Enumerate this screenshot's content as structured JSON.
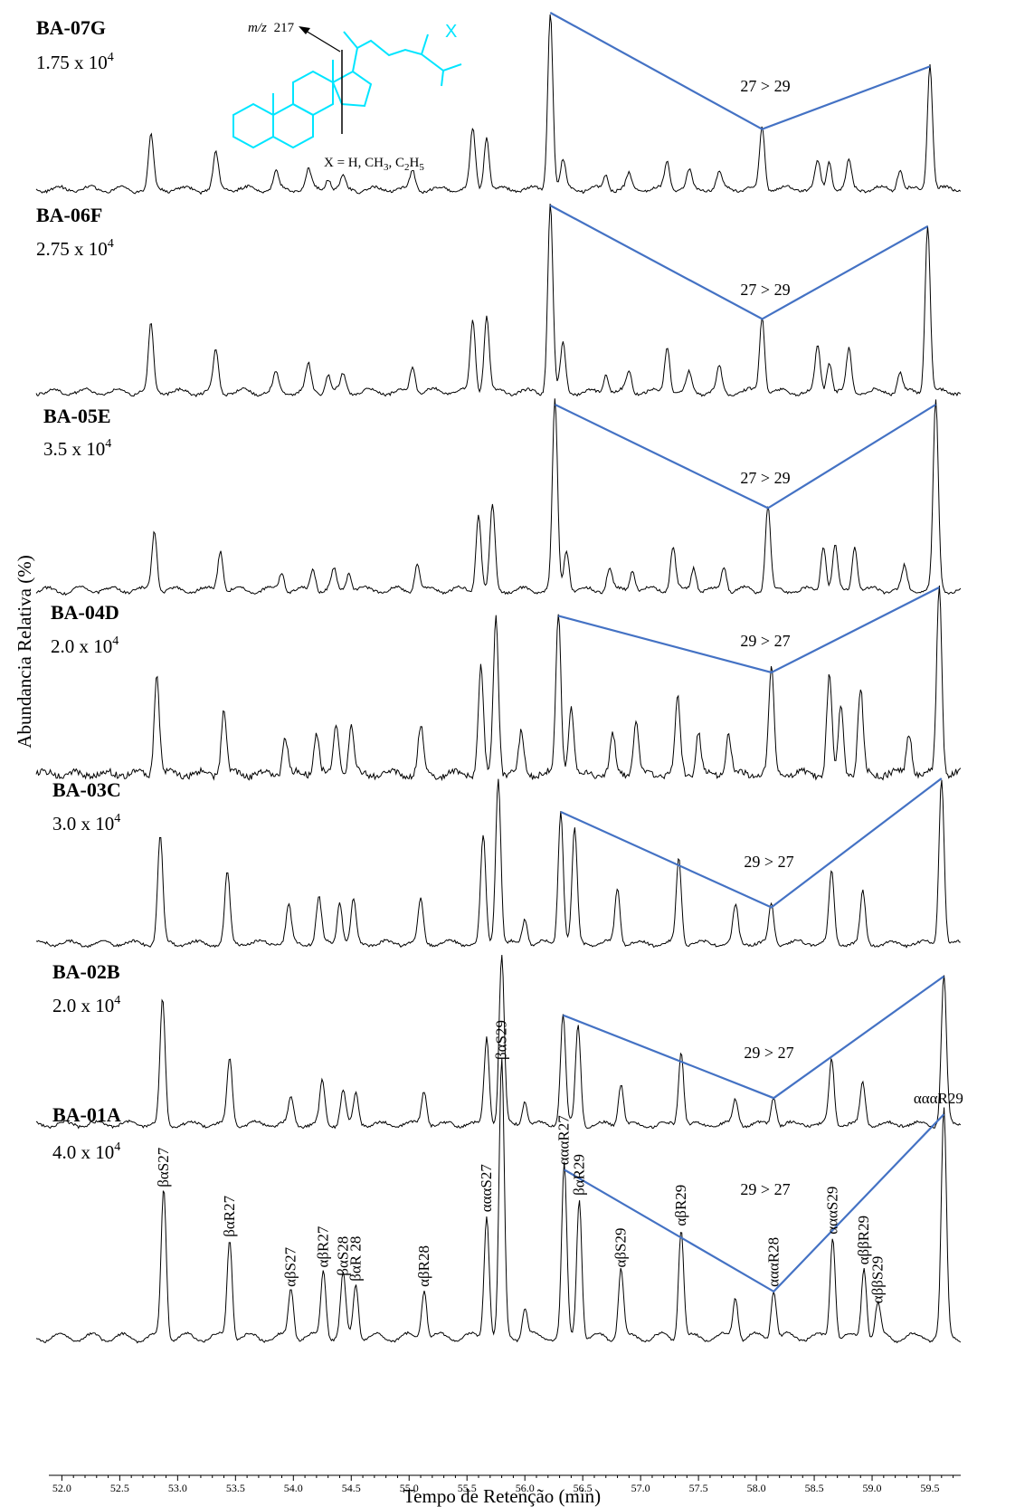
{
  "chart_data": {
    "type": "line",
    "title": "",
    "xlabel": "Tempo de Retenção (min)",
    "ylabel": "Abundancia Relativa (%)",
    "xlim": [
      51.95,
      59.75
    ],
    "x_ticks": [
      "52.0",
      "52.5",
      "53.0",
      "53.5",
      "54.0",
      "54.5",
      "55.0",
      "55.5",
      "56.0",
      "56.5",
      "57.0",
      "57.5",
      "58.0",
      "58.5",
      "59.0",
      "59.5"
    ],
    "inset": {
      "mz_prefix": "m/z",
      "mz_value": "217",
      "substituent": "X",
      "formula_text": "X = H, CH3, C2H5"
    },
    "color_line": "#4472c4",
    "color_structure": "#00e5ff",
    "panels": [
      {
        "name": "BA-07G",
        "scale": "1.75 x 10",
        "exp": "4",
        "ratio": "27 > 29",
        "peaks": [
          [
            52.77,
            0.3
          ],
          [
            53.33,
            0.2
          ],
          [
            53.85,
            0.1
          ],
          [
            54.13,
            0.1
          ],
          [
            54.3,
            0.07
          ],
          [
            54.43,
            0.06
          ],
          [
            55.03,
            0.1
          ],
          [
            55.55,
            0.33
          ],
          [
            55.67,
            0.3
          ],
          [
            56.22,
            1.0
          ],
          [
            56.33,
            0.15
          ],
          [
            56.7,
            0.08
          ],
          [
            56.9,
            0.08
          ],
          [
            57.23,
            0.15
          ],
          [
            57.42,
            0.1
          ],
          [
            57.68,
            0.09
          ],
          [
            58.05,
            0.35
          ],
          [
            58.53,
            0.15
          ],
          [
            58.63,
            0.16
          ],
          [
            58.8,
            0.15
          ],
          [
            59.24,
            0.12
          ],
          [
            59.5,
            0.7
          ]
        ],
        "vline": [
          [
            56.22,
            1.0
          ],
          [
            58.05,
            0.35
          ],
          [
            59.5,
            0.7
          ]
        ]
      },
      {
        "name": "BA-06F",
        "scale": "2.75 x 10",
        "exp": "4",
        "ratio": "27 > 29",
        "peaks": [
          [
            52.77,
            0.35
          ],
          [
            53.33,
            0.22
          ],
          [
            53.85,
            0.1
          ],
          [
            54.13,
            0.14
          ],
          [
            54.3,
            0.09
          ],
          [
            54.43,
            0.09
          ],
          [
            55.03,
            0.14
          ],
          [
            55.55,
            0.38
          ],
          [
            55.67,
            0.41
          ],
          [
            56.22,
            1.0
          ],
          [
            56.33,
            0.25
          ],
          [
            56.7,
            0.1
          ],
          [
            56.9,
            0.1
          ],
          [
            57.23,
            0.25
          ],
          [
            57.42,
            0.1
          ],
          [
            57.68,
            0.13
          ],
          [
            58.05,
            0.4
          ],
          [
            58.53,
            0.24
          ],
          [
            58.63,
            0.17
          ],
          [
            58.8,
            0.22
          ],
          [
            59.24,
            0.1
          ],
          [
            59.48,
            0.89
          ]
        ],
        "vline": [
          [
            56.22,
            1.0
          ],
          [
            58.05,
            0.4
          ],
          [
            59.48,
            0.89
          ]
        ]
      },
      {
        "name": "BA-05E",
        "scale": "3.5 x 10",
        "exp": "4",
        "ratio": "27 > 29",
        "peaks": [
          [
            52.8,
            0.32
          ],
          [
            53.37,
            0.22
          ],
          [
            53.9,
            0.1
          ],
          [
            54.17,
            0.12
          ],
          [
            54.35,
            0.1
          ],
          [
            54.48,
            0.1
          ],
          [
            55.07,
            0.14
          ],
          [
            55.6,
            0.41
          ],
          [
            55.72,
            0.45
          ],
          [
            56.26,
            1.0
          ],
          [
            56.36,
            0.22
          ],
          [
            56.73,
            0.12
          ],
          [
            56.93,
            0.11
          ],
          [
            57.28,
            0.23
          ],
          [
            57.46,
            0.13
          ],
          [
            57.72,
            0.13
          ],
          [
            58.1,
            0.45
          ],
          [
            58.58,
            0.25
          ],
          [
            58.68,
            0.23
          ],
          [
            58.85,
            0.24
          ],
          [
            59.28,
            0.12
          ],
          [
            59.55,
            1.0
          ]
        ],
        "vline": [
          [
            56.26,
            1.0
          ],
          [
            58.1,
            0.45
          ],
          [
            59.55,
            1.0
          ]
        ]
      },
      {
        "name": "BA-04D",
        "scale": "2.0 x 10",
        "exp": "4",
        "ratio": "29 > 27",
        "peaks": [
          [
            52.82,
            0.53
          ],
          [
            53.4,
            0.34
          ],
          [
            53.93,
            0.2
          ],
          [
            54.2,
            0.22
          ],
          [
            54.37,
            0.26
          ],
          [
            54.5,
            0.25
          ],
          [
            55.1,
            0.25
          ],
          [
            55.62,
            0.57
          ],
          [
            55.75,
            0.84
          ],
          [
            55.97,
            0.22
          ],
          [
            56.29,
            0.85
          ],
          [
            56.4,
            0.37
          ],
          [
            56.76,
            0.2
          ],
          [
            56.96,
            0.27
          ],
          [
            57.32,
            0.4
          ],
          [
            57.5,
            0.22
          ],
          [
            57.76,
            0.22
          ],
          [
            58.13,
            0.55
          ],
          [
            58.63,
            0.52
          ],
          [
            58.73,
            0.35
          ],
          [
            58.9,
            0.45
          ],
          [
            59.32,
            0.22
          ],
          [
            59.58,
            1.0
          ]
        ],
        "vline": [
          [
            56.29,
            0.85
          ],
          [
            58.13,
            0.55
          ],
          [
            59.58,
            1.0
          ]
        ]
      },
      {
        "name": "BA-03C",
        "scale": "3.0 x 10",
        "exp": "4",
        "ratio": "29 > 27",
        "peaks": [
          [
            52.85,
            0.64
          ],
          [
            53.43,
            0.42
          ],
          [
            53.96,
            0.22
          ],
          [
            54.22,
            0.27
          ],
          [
            54.4,
            0.25
          ],
          [
            54.52,
            0.25
          ],
          [
            55.1,
            0.25
          ],
          [
            55.64,
            0.64
          ],
          [
            55.77,
            1.0
          ],
          [
            56.0,
            0.15
          ],
          [
            56.31,
            0.8
          ],
          [
            56.43,
            0.68
          ],
          [
            56.8,
            0.33
          ],
          [
            57.33,
            0.51
          ],
          [
            57.82,
            0.22
          ],
          [
            58.13,
            0.23
          ],
          [
            58.65,
            0.43
          ],
          [
            58.92,
            0.3
          ],
          [
            59.6,
            1.0
          ]
        ],
        "vline": [
          [
            56.31,
            0.8
          ],
          [
            58.13,
            0.23
          ],
          [
            59.6,
            1.0
          ]
        ]
      },
      {
        "name": "BA-02B",
        "scale": "2.0 x 10",
        "exp": "4",
        "ratio": "29 > 27",
        "peaks": [
          [
            52.87,
            0.73
          ],
          [
            53.45,
            0.39
          ],
          [
            53.98,
            0.16
          ],
          [
            54.25,
            0.25
          ],
          [
            54.43,
            0.2
          ],
          [
            54.54,
            0.18
          ],
          [
            55.13,
            0.2
          ],
          [
            55.67,
            0.52
          ],
          [
            55.8,
            1.0
          ],
          [
            56.0,
            0.15
          ],
          [
            56.33,
            0.66
          ],
          [
            56.46,
            0.59
          ],
          [
            56.83,
            0.25
          ],
          [
            57.35,
            0.44
          ],
          [
            57.82,
            0.14
          ],
          [
            58.15,
            0.17
          ],
          [
            58.65,
            0.39
          ],
          [
            58.92,
            0.25
          ],
          [
            59.62,
            0.89
          ]
        ],
        "vline": [
          [
            56.33,
            0.66
          ],
          [
            58.15,
            0.17
          ],
          [
            59.62,
            0.89
          ]
        ]
      },
      {
        "name": "BA-01A",
        "scale": "4.0 x 10",
        "exp": "4",
        "ratio": "29 > 27",
        "peaks": [
          [
            52.88,
            0.54
          ],
          [
            53.45,
            0.36
          ],
          [
            53.98,
            0.18
          ],
          [
            54.26,
            0.25
          ],
          [
            54.43,
            0.22
          ],
          [
            54.54,
            0.2
          ],
          [
            55.13,
            0.18
          ],
          [
            55.67,
            0.45
          ],
          [
            55.8,
            1.0
          ],
          [
            56.0,
            0.11
          ],
          [
            56.34,
            0.62
          ],
          [
            56.47,
            0.51
          ],
          [
            56.83,
            0.25
          ],
          [
            57.35,
            0.4
          ],
          [
            57.82,
            0.15
          ],
          [
            58.15,
            0.18
          ],
          [
            58.66,
            0.37
          ],
          [
            58.93,
            0.26
          ],
          [
            59.05,
            0.12
          ],
          [
            59.62,
            0.82
          ]
        ],
        "vline": [
          [
            56.34,
            0.62
          ],
          [
            58.15,
            0.18
          ],
          [
            59.62,
            0.82
          ]
        ],
        "peak_labels": [
          {
            "text": "βαS27",
            "x": 52.88,
            "y": 0.54
          },
          {
            "text": "βαR27",
            "x": 53.45,
            "y": 0.36
          },
          {
            "text": "αβS27",
            "x": 53.98,
            "y": 0.18
          },
          {
            "text": "αβR27",
            "x": 54.26,
            "y": 0.25
          },
          {
            "text": "βαS28",
            "x": 54.43,
            "y": 0.22
          },
          {
            "text": "βαR 28",
            "x": 54.54,
            "y": 0.2
          },
          {
            "text": "αβR28",
            "x": 55.13,
            "y": 0.18
          },
          {
            "text": "αααS27",
            "x": 55.67,
            "y": 0.45
          },
          {
            "text": "βαS29",
            "x": 55.8,
            "y": 1.0
          },
          {
            "text": "αααR27",
            "x": 56.34,
            "y": 0.62
          },
          {
            "text": "βαR29",
            "x": 56.47,
            "y": 0.51
          },
          {
            "text": "αβS29",
            "x": 56.83,
            "y": 0.25
          },
          {
            "text": "αβR29",
            "x": 57.35,
            "y": 0.4
          },
          {
            "text": "αααR28",
            "x": 58.15,
            "y": 0.18
          },
          {
            "text": "αααS29",
            "x": 58.66,
            "y": 0.37
          },
          {
            "text": "αββR29",
            "x": 58.93,
            "y": 0.26
          },
          {
            "text": "αββS29",
            "x": 59.05,
            "y": 0.12
          },
          {
            "text": "αααR29",
            "x": 59.62,
            "y": 0.82
          }
        ]
      }
    ]
  }
}
